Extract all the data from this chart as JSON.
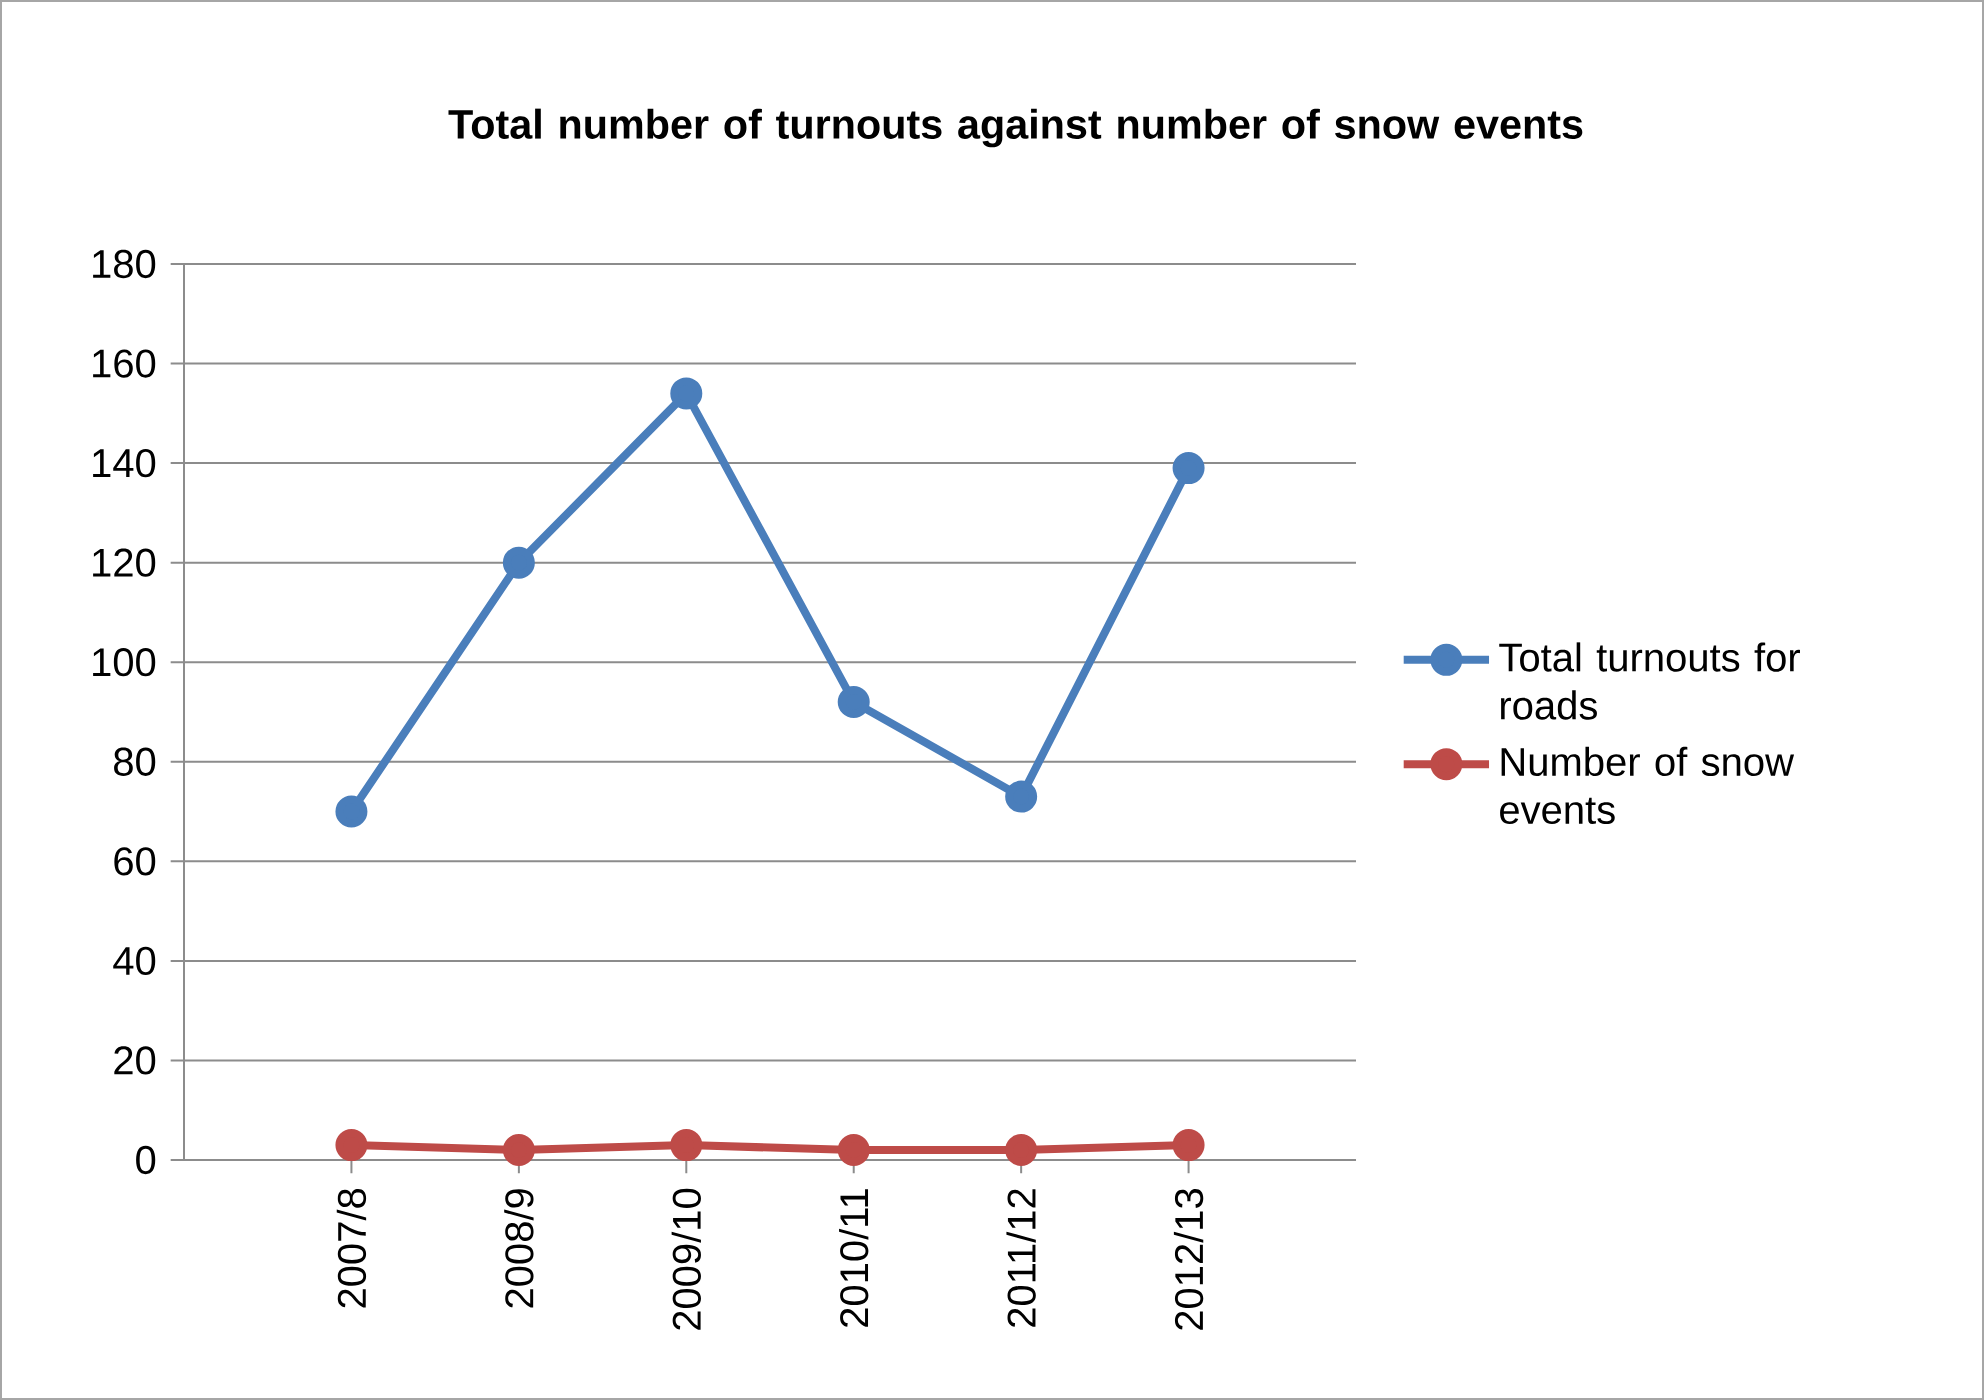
{
  "chart_data": {
    "type": "line",
    "title": "Total number of turnouts against number of snow events",
    "categories": [
      "2007/8",
      "2008/9",
      "2009/10",
      "2010/11",
      "2011/12",
      "2012/13"
    ],
    "series": [
      {
        "name": "Total turnouts for roads",
        "color": "#4a7ebb",
        "values": [
          70,
          120,
          154,
          92,
          73,
          139
        ]
      },
      {
        "name": "Number of snow events",
        "color": "#be4b48",
        "values": [
          3,
          2,
          3,
          2,
          2,
          3
        ]
      }
    ],
    "ylim": [
      0,
      180
    ],
    "yticks": [
      0,
      20,
      40,
      60,
      80,
      100,
      120,
      140,
      160,
      180
    ],
    "grid": "y",
    "legend": "right",
    "marker": "circle",
    "line_style": "solid"
  }
}
